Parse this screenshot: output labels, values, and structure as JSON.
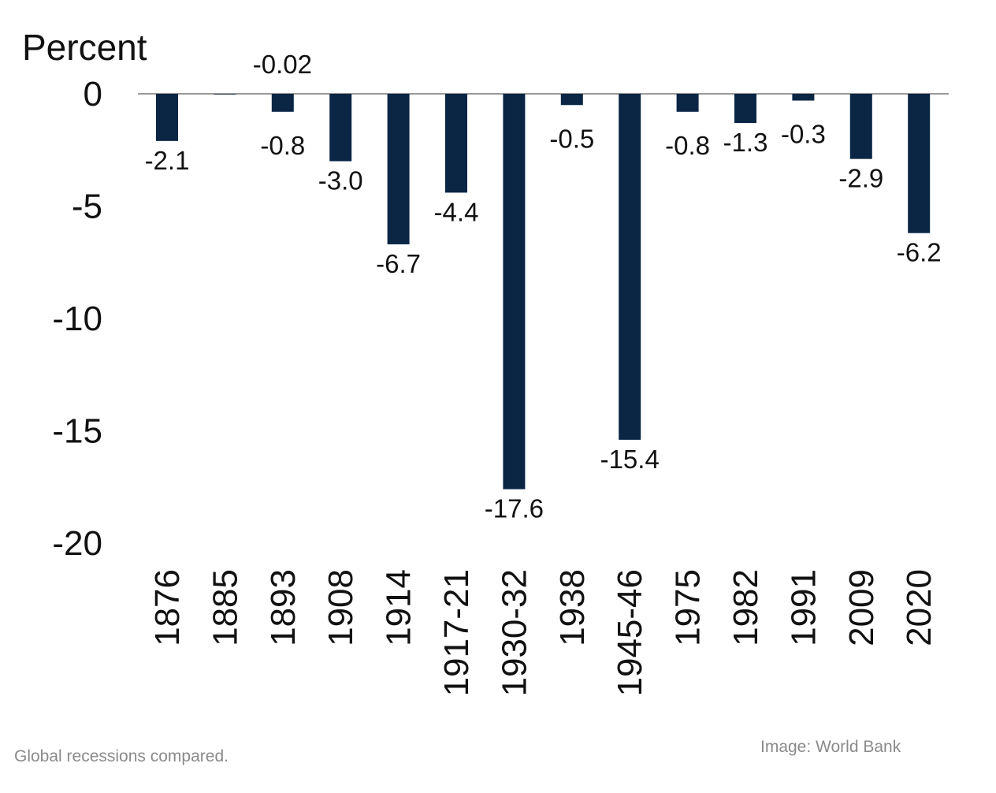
{
  "chart_data": {
    "type": "bar",
    "ylabel": "Percent",
    "categories": [
      "1876",
      "1885",
      "1893",
      "1908",
      "1914",
      "1917-21",
      "1930-32",
      "1938",
      "1945-46",
      "1975",
      "1982",
      "1991",
      "2009",
      "2020"
    ],
    "values": [
      -2.1,
      -0.02,
      -0.8,
      -3.0,
      -6.7,
      -4.4,
      -17.6,
      -0.5,
      -15.4,
      -0.8,
      -1.3,
      -0.3,
      -2.9,
      -6.2
    ],
    "value_labels": [
      "-2.1",
      "-0.02",
      "-0.8",
      "-3.0",
      "-6.7",
      "-4.4",
      "-17.6",
      "-0.5",
      "-15.4",
      "-0.8",
      "-1.3",
      "-0.3",
      "-2.9",
      "-6.2"
    ],
    "ylim": [
      -20,
      0
    ],
    "yticks": [
      0,
      -5,
      -10,
      -15,
      -20
    ],
    "ytick_labels": [
      "0",
      "-5",
      "-10",
      "-15",
      "-20"
    ],
    "grid": false,
    "legend": "none",
    "bar_color": "#0b2545",
    "zero_line_color": "#9a9a9a"
  },
  "captions": {
    "left": "Global recessions compared.",
    "right": "Image: World Bank"
  }
}
